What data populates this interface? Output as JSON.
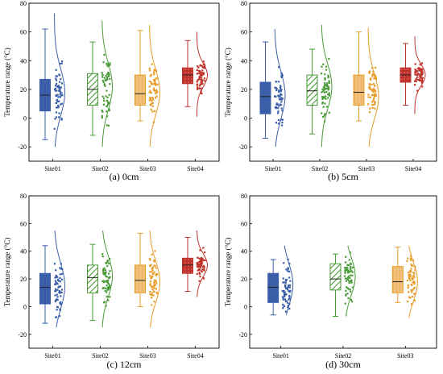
{
  "colors": {
    "Site01": "#3a5fa8",
    "Site02": "#4a9a38",
    "Site03": "#e89c28",
    "Site04": "#c0322c",
    "axis": "#000000"
  },
  "y_axis": {
    "label": "Temperature range (°C)",
    "ylim": [
      -30,
      80
    ],
    "ticks": [
      "-20",
      "0",
      "20",
      "40",
      "60",
      "80"
    ]
  },
  "chart_data": [
    {
      "type": "raincloud (box + scatter + distribution)",
      "caption": "(a) 0cm",
      "ylabel": "Temperature range (°C)",
      "ylim": [
        -30,
        80
      ],
      "categories": [
        "Site01",
        "Site02",
        "Site03",
        "Site04"
      ],
      "boxes": [
        {
          "name": "Site01",
          "min": -15,
          "q1": 5,
          "median": 16,
          "q3": 27,
          "max": 62,
          "kde_min": -20,
          "kde_max": 73,
          "kde_peak": 18
        },
        {
          "name": "Site02",
          "min": -12,
          "q1": 9,
          "median": 20,
          "q3": 31,
          "max": 53,
          "kde_min": -20,
          "kde_max": 68,
          "kde_peak": 22
        },
        {
          "name": "Site03",
          "min": -2,
          "q1": 9,
          "median": 17,
          "q3": 30,
          "max": 61,
          "kde_min": -20,
          "kde_max": 65,
          "kde_peak": 18
        },
        {
          "name": "Site04",
          "min": 8,
          "q1": 24,
          "median": 30,
          "q3": 35,
          "max": 54,
          "kde_min": 1,
          "kde_max": 60,
          "kde_peak": 30
        }
      ]
    },
    {
      "type": "raincloud (box + scatter + distribution)",
      "caption": "(b) 5cm",
      "ylabel": "Temperature range (°C)",
      "ylim": [
        -30,
        80
      ],
      "categories": [
        "Site01",
        "Site02",
        "Site03",
        "Site04"
      ],
      "boxes": [
        {
          "name": "Site01",
          "min": -14,
          "q1": 3,
          "median": 15,
          "q3": 25,
          "max": 53,
          "kde_min": -20,
          "kde_max": 62,
          "kde_peak": 16
        },
        {
          "name": "Site02",
          "min": -11,
          "q1": 9,
          "median": 19,
          "q3": 30,
          "max": 48,
          "kde_min": -20,
          "kde_max": 65,
          "kde_peak": 22
        },
        {
          "name": "Site03",
          "min": -2,
          "q1": 9,
          "median": 18,
          "q3": 30,
          "max": 60,
          "kde_min": -20,
          "kde_max": 63,
          "kde_peak": 15
        },
        {
          "name": "Site04",
          "min": 9,
          "q1": 25,
          "median": 30,
          "q3": 35,
          "max": 52,
          "kde_min": 3,
          "kde_max": 57,
          "kde_peak": 30
        }
      ]
    },
    {
      "type": "raincloud (box + scatter + distribution)",
      "caption": "(c) 12cm",
      "ylabel": "Temperature range (°C)",
      "ylim": [
        -30,
        80
      ],
      "categories": [
        "Site01",
        "Site02",
        "Site03",
        "Site04"
      ],
      "boxes": [
        {
          "name": "Site01",
          "min": -12,
          "q1": 2,
          "median": 14,
          "q3": 24,
          "max": 44,
          "kde_min": -15,
          "kde_max": 55,
          "kde_peak": 15
        },
        {
          "name": "Site02",
          "min": -10,
          "q1": 10,
          "median": 21,
          "q3": 30,
          "max": 45,
          "kde_min": -15,
          "kde_max": 55,
          "kde_peak": 22
        },
        {
          "name": "Site03",
          "min": 0,
          "q1": 10,
          "median": 19,
          "q3": 30,
          "max": 53,
          "kde_min": -15,
          "kde_max": 55,
          "kde_peak": 18
        },
        {
          "name": "Site04",
          "min": 11,
          "q1": 24,
          "median": 30,
          "q3": 35,
          "max": 50,
          "kde_min": 7,
          "kde_max": 55,
          "kde_peak": 30
        }
      ]
    },
    {
      "type": "raincloud (box + scatter + distribution)",
      "caption": "(d) 30cm",
      "ylabel": "Temperature range (°C)",
      "ylim": [
        -30,
        80
      ],
      "categories": [
        "Site01",
        "Site02",
        "Site03"
      ],
      "boxes": [
        {
          "name": "Site01",
          "min": -6,
          "q1": 3,
          "median": 14,
          "q3": 24,
          "max": 34,
          "kde_min": -6,
          "kde_max": 44,
          "kde_peak": 16
        },
        {
          "name": "Site02",
          "min": -7,
          "q1": 12,
          "median": 20,
          "q3": 31,
          "max": 38,
          "kde_min": -7,
          "kde_max": 44,
          "kde_peak": 22
        },
        {
          "name": "Site03",
          "min": 3,
          "q1": 10,
          "median": 18,
          "q3": 29,
          "max": 43,
          "kde_min": -8,
          "kde_max": 44,
          "kde_peak": 18
        }
      ]
    }
  ]
}
